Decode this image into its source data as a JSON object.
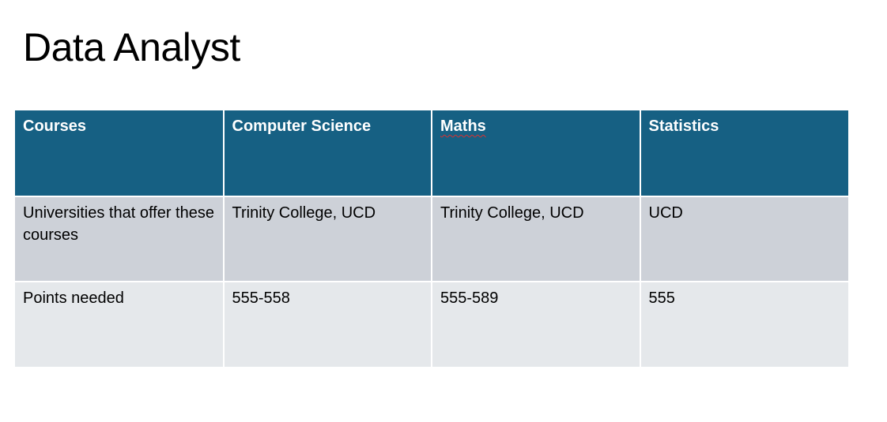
{
  "slide": {
    "title": "Data Analyst"
  },
  "table": {
    "headers": [
      "Courses",
      "Computer Science",
      "Maths",
      "Statistics"
    ],
    "rows": [
      [
        "Universities that offer these courses",
        "Trinity College, UCD",
        "Trinity College, UCD",
        "UCD"
      ],
      [
        "Points needed",
        "555-558",
        "555-589",
        "555"
      ]
    ]
  }
}
